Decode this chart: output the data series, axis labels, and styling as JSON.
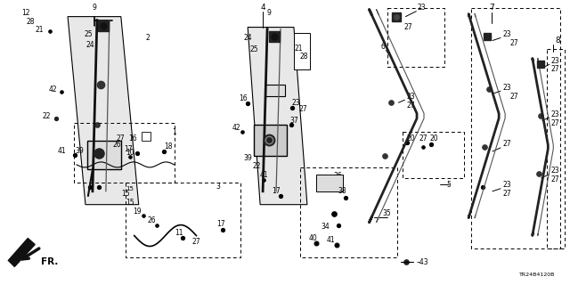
{
  "bg_color": "#ffffff",
  "line_color": "#000000",
  "text_color": "#000000",
  "diagram_ref": "TR24B4120B",
  "fig_width": 6.4,
  "fig_height": 3.2,
  "dpi": 100
}
